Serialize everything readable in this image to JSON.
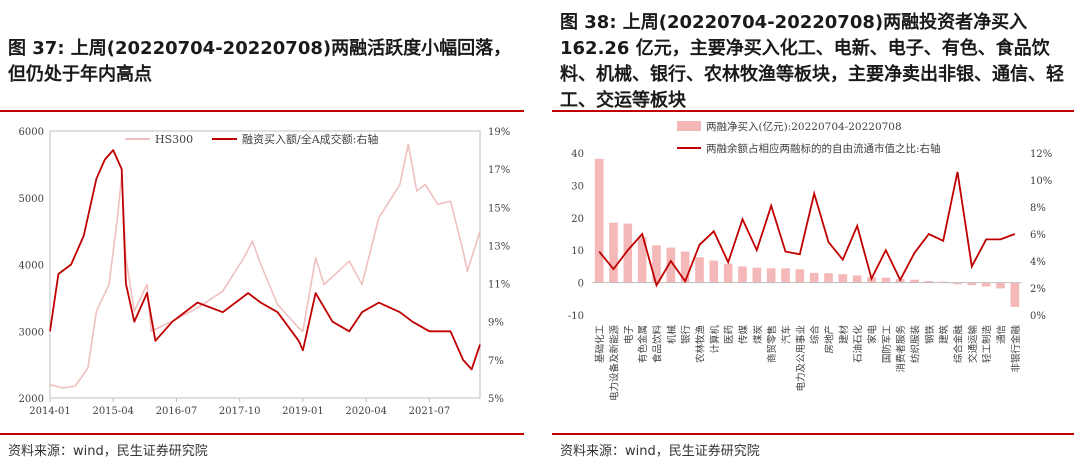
{
  "left": {
    "title": "图 37: 上周(20220704-20220708)两融活跃度小幅回落，但仍处于年内高点",
    "source": "资料来源：wind，民生证券研究院"
  },
  "right": {
    "title": "图 38: 上周(20220704-20220708)两融投资者净买入 162.26 亿元，主要净买入化工、电新、电子、有色、食品饮料、机械、银行、农林牧渔等板块，主要净卖出非银、通信、轻工、交运等板块",
    "source": "资料来源：wind，民生证券研究院"
  },
  "chart_data": [
    {
      "type": "line",
      "title": "",
      "series": [
        {
          "name": "HS300",
          "axis": "left",
          "color": "#f0c0c0",
          "points": [
            [
              "2014-01",
              2200
            ],
            [
              "2014-04",
              2150
            ],
            [
              "2014-07",
              2180
            ],
            [
              "2014-10",
              2450
            ],
            [
              "2014-12",
              3300
            ],
            [
              "2015-03",
              3700
            ],
            [
              "2015-05",
              4700
            ],
            [
              "2015-06",
              5350
            ],
            [
              "2015-07",
              4100
            ],
            [
              "2015-09",
              3300
            ],
            [
              "2015-12",
              3700
            ],
            [
              "2016-01",
              3000
            ],
            [
              "2016-06",
              3150
            ],
            [
              "2016-12",
              3350
            ],
            [
              "2017-06",
              3600
            ],
            [
              "2017-11",
              4100
            ],
            [
              "2018-01",
              4350
            ],
            [
              "2018-03",
              4000
            ],
            [
              "2018-07",
              3400
            ],
            [
              "2018-12",
              3050
            ],
            [
              "2019-01",
              3000
            ],
            [
              "2019-04",
              4100
            ],
            [
              "2019-06",
              3700
            ],
            [
              "2019-12",
              4050
            ],
            [
              "2020-03",
              3700
            ],
            [
              "2020-07",
              4700
            ],
            [
              "2020-12",
              5200
            ],
            [
              "2021-02",
              5800
            ],
            [
              "2021-04",
              5100
            ],
            [
              "2021-06",
              5200
            ],
            [
              "2021-09",
              4900
            ],
            [
              "2021-12",
              4950
            ],
            [
              "2022-03",
              4200
            ],
            [
              "2022-04",
              3900
            ],
            [
              "2022-07",
              4500
            ]
          ]
        },
        {
          "name": "融资买入额/全A成交额:右轴",
          "axis": "right",
          "color": "#c00000",
          "points": [
            [
              "2014-01",
              8.5
            ],
            [
              "2014-03",
              11.5
            ],
            [
              "2014-06",
              12.0
            ],
            [
              "2014-09",
              13.5
            ],
            [
              "2014-12",
              16.5
            ],
            [
              "2015-02",
              17.5
            ],
            [
              "2015-04",
              18.0
            ],
            [
              "2015-06",
              17.0
            ],
            [
              "2015-07",
              11.0
            ],
            [
              "2015-09",
              9.0
            ],
            [
              "2015-12",
              10.5
            ],
            [
              "2016-02",
              8.0
            ],
            [
              "2016-06",
              9.0
            ],
            [
              "2016-12",
              10.0
            ],
            [
              "2017-06",
              9.5
            ],
            [
              "2017-12",
              10.5
            ],
            [
              "2018-03",
              10.0
            ],
            [
              "2018-07",
              9.5
            ],
            [
              "2018-12",
              8.0
            ],
            [
              "2019-01",
              7.5
            ],
            [
              "2019-04",
              10.5
            ],
            [
              "2019-08",
              9.0
            ],
            [
              "2019-12",
              8.5
            ],
            [
              "2020-03",
              9.5
            ],
            [
              "2020-07",
              10.0
            ],
            [
              "2020-12",
              9.5
            ],
            [
              "2021-03",
              9.0
            ],
            [
              "2021-07",
              8.5
            ],
            [
              "2021-12",
              8.5
            ],
            [
              "2022-03",
              7.0
            ],
            [
              "2022-05",
              6.5
            ],
            [
              "2022-07",
              7.8
            ]
          ]
        }
      ],
      "x_ticks": [
        "2014-01",
        "2015-04",
        "2016-07",
        "2017-10",
        "2019-01",
        "2020-04",
        "2021-07"
      ],
      "y_left_ticks": [
        "2000",
        "3000",
        "4000",
        "5000",
        "6000"
      ],
      "y_left_range": [
        2000,
        6000
      ],
      "y_right_ticks": [
        "5%",
        "7%",
        "9%",
        "11%",
        "13%",
        "15%",
        "17%",
        "19%"
      ],
      "y_right_range": [
        5,
        19
      ]
    },
    {
      "type": "bar",
      "title": "",
      "categories": [
        "基础化工",
        "电力设备及新能源",
        "电子",
        "有色金属",
        "食品饮料",
        "机械",
        "银行",
        "农林牧渔",
        "计算机",
        "医药",
        "传媒",
        "煤炭",
        "商贸零售",
        "汽车",
        "电力及公用事业",
        "综合",
        "房地产",
        "建材",
        "石油石化",
        "家电",
        "国防军工",
        "消费者服务",
        "纺织服装",
        "钢铁",
        "建筑",
        "综合金融",
        "交通运输",
        "轻工制造",
        "通信",
        "非银行金融"
      ],
      "series": [
        {
          "name": "两融净买入(亿元):20220704-20220708",
          "axis": "left",
          "color": "#f4b8b8",
          "values": [
            38.2,
            18.5,
            18.2,
            14.0,
            11.5,
            10.8,
            9.6,
            7.8,
            6.8,
            5.8,
            5.0,
            4.6,
            4.4,
            4.4,
            4.1,
            3.0,
            2.9,
            2.6,
            2.2,
            1.7,
            1.5,
            1.1,
            0.9,
            0.5,
            0.3,
            -0.5,
            -0.8,
            -1.2,
            -1.8,
            -7.5
          ]
        },
        {
          "name": "两融余额占相应两融标的的自由流通市值之比:右轴",
          "axis": "right",
          "color": "#c00000",
          "values": [
            4.7,
            3.4,
            4.8,
            6.0,
            2.2,
            4.0,
            2.5,
            5.2,
            6.2,
            3.9,
            7.1,
            4.8,
            8.1,
            4.7,
            4.5,
            9.0,
            5.4,
            4.1,
            6.6,
            2.7,
            4.8,
            2.6,
            4.6,
            6.0,
            5.5,
            10.6,
            3.6,
            5.6,
            5.6,
            6.0
          ]
        }
      ],
      "y_left_ticks": [
        "-10",
        "0",
        "10",
        "20",
        "30",
        "40"
      ],
      "y_left_range": [
        -10,
        40
      ],
      "y_right_ticks": [
        "0%",
        "2%",
        "4%",
        "6%",
        "8%",
        "10%",
        "12%"
      ],
      "y_right_range": [
        0,
        12
      ]
    }
  ]
}
